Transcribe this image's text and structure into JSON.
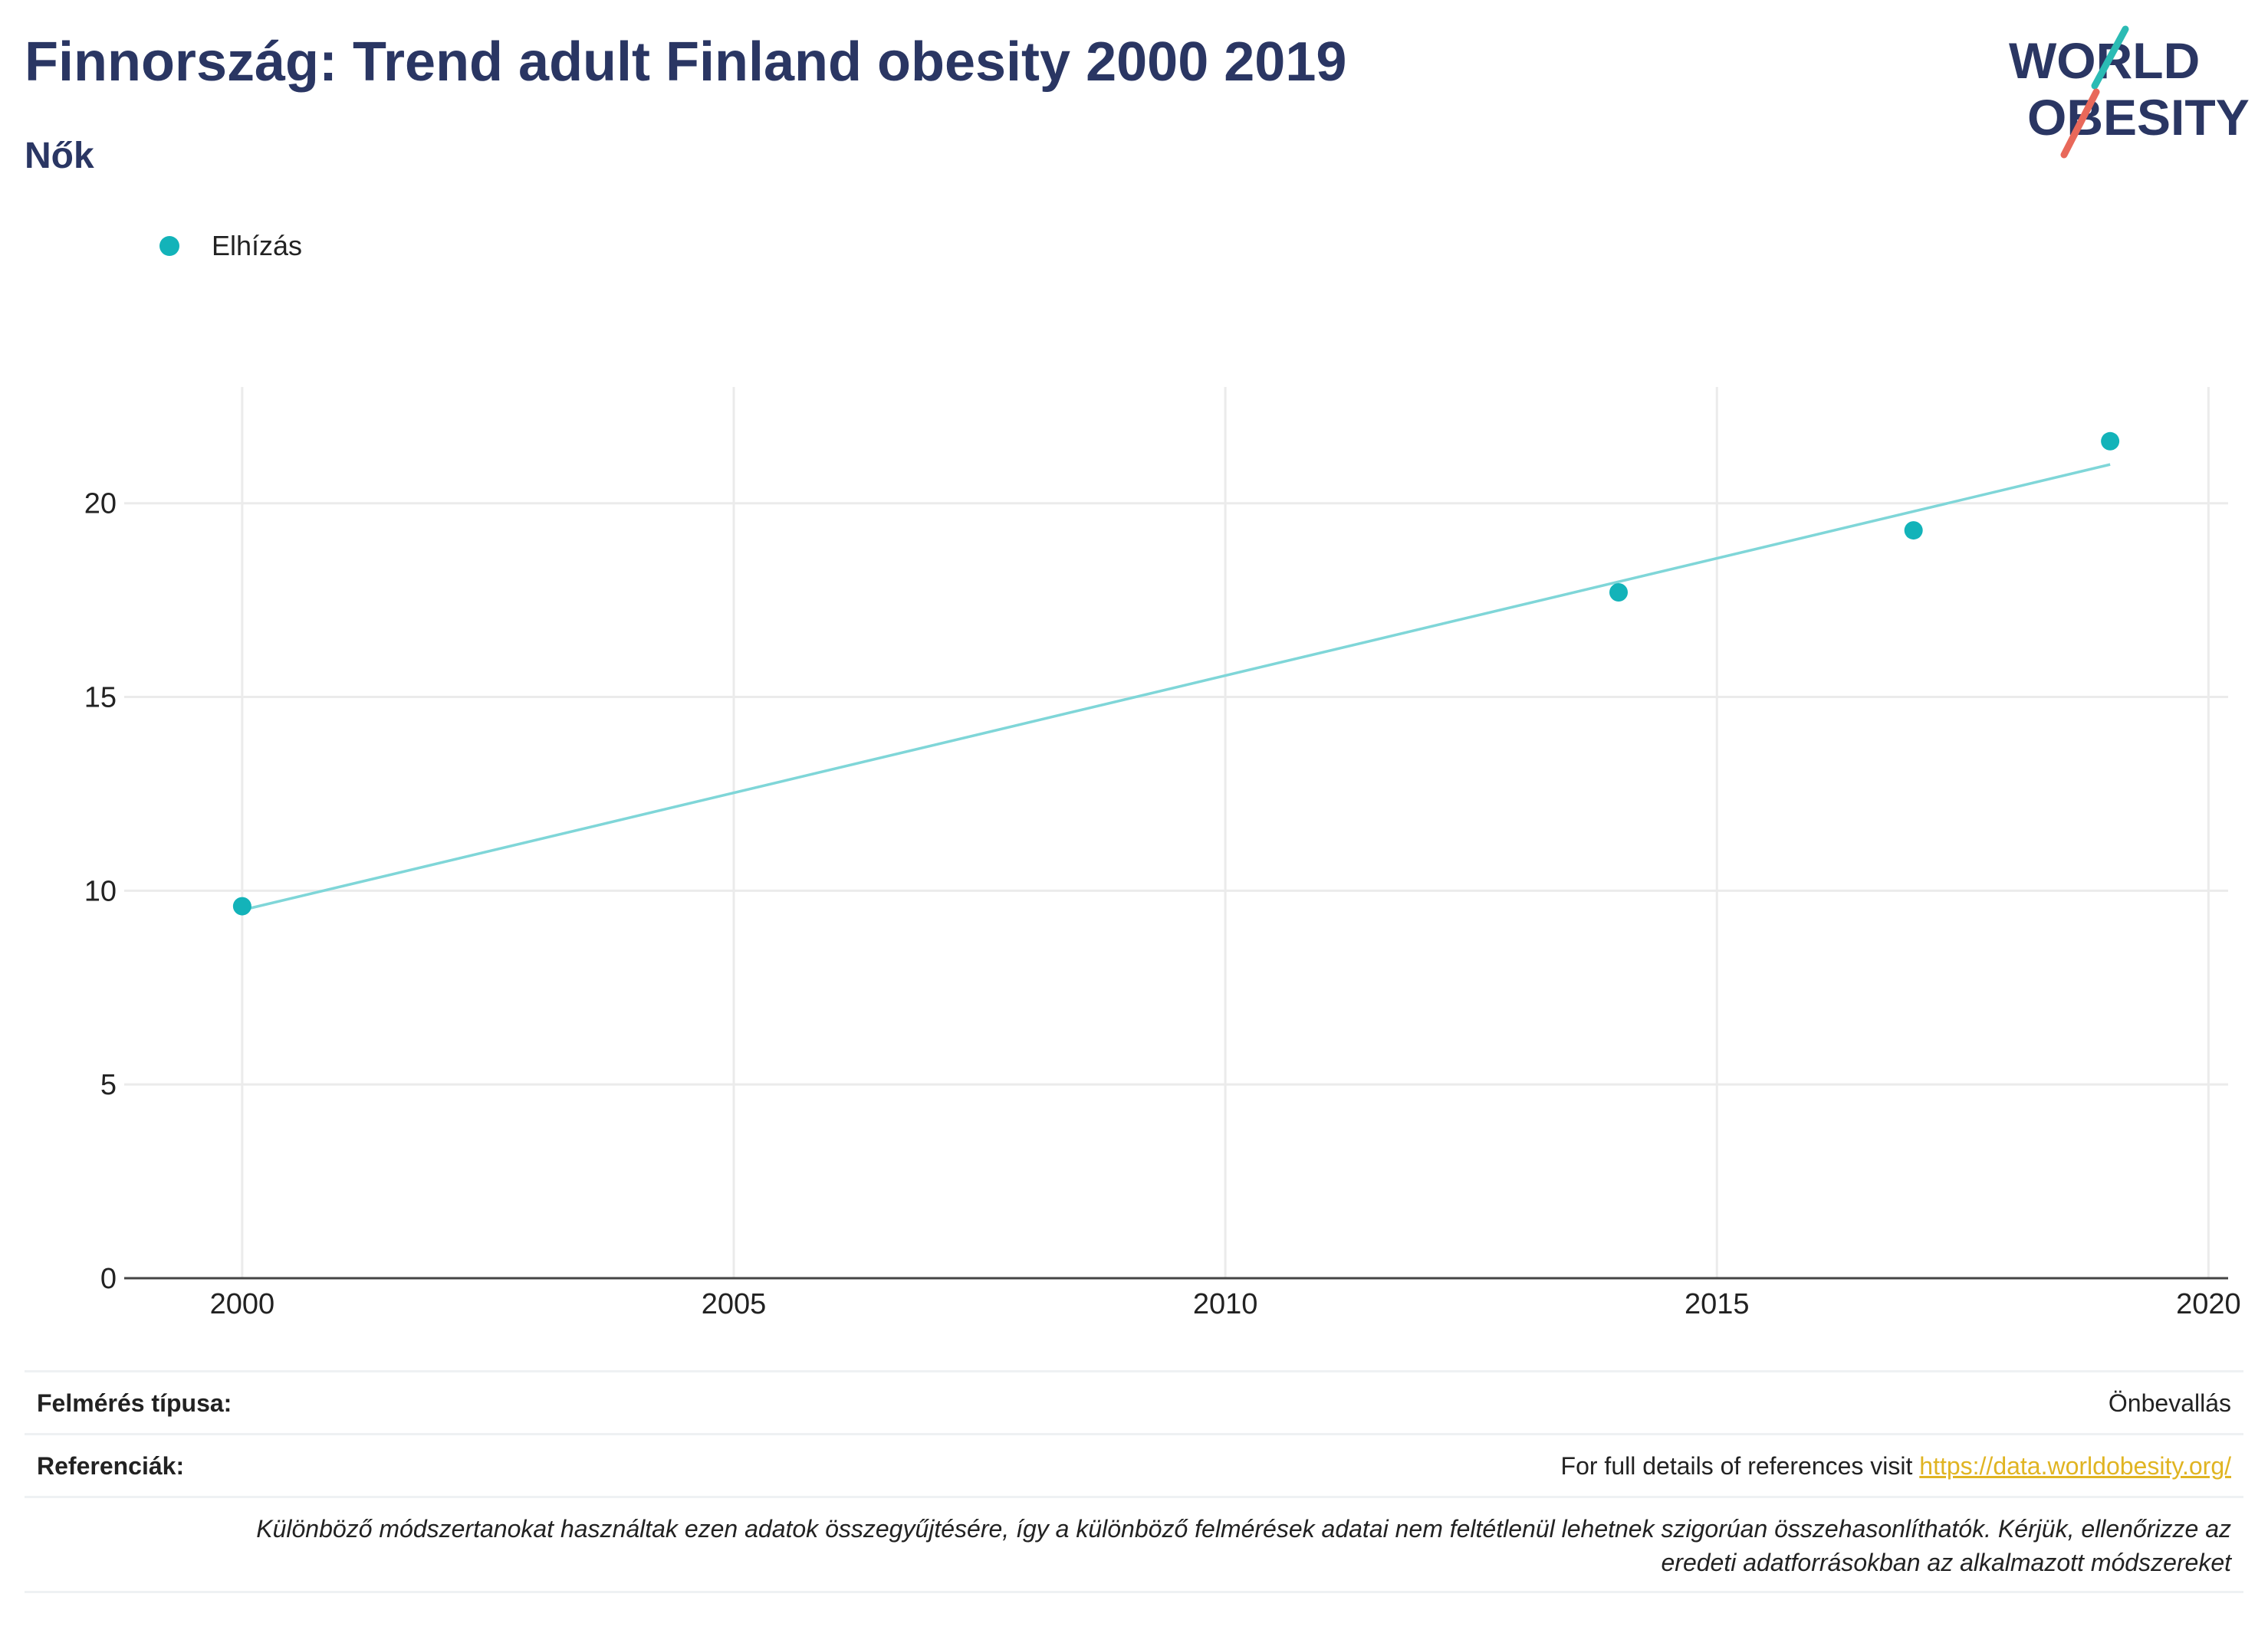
{
  "header": {
    "title": "Finnország: Trend adult Finland obesity 2000 2019",
    "subtitle": "Nők"
  },
  "logo": {
    "line1": "WORLD",
    "line2": "OBESITY",
    "colors": {
      "text": "#2a3663",
      "slash_teal": "#2bbbb4",
      "slash_coral": "#e8685a"
    }
  },
  "colors": {
    "accent": "#13b3b9",
    "trend_line": "#7fd6d8",
    "grid": "#ebebeb",
    "axis": "#444444",
    "title": "#2a3663",
    "link": "#e0b422"
  },
  "chart_data": {
    "type": "scatter",
    "series": [
      {
        "name": "Elhízás",
        "x": [
          2000,
          2014,
          2017,
          2019
        ],
        "y": [
          9.6,
          17.7,
          19.3,
          21.6
        ]
      }
    ],
    "trendline": {
      "x": [
        2000,
        2019
      ],
      "y": [
        9.5,
        21.0
      ]
    },
    "xlim": [
      1998.8,
      2020.2
    ],
    "ylim": [
      0,
      23
    ],
    "xticks": [
      2000,
      2005,
      2010,
      2015,
      2020
    ],
    "yticks": [
      0,
      5,
      10,
      15,
      20
    ],
    "xlabel": "",
    "ylabel": "",
    "grid": true,
    "legend_position": "top-left"
  },
  "footer": {
    "survey_type_label": "Felmérés típusa:",
    "survey_type_value": "Önbevallás",
    "references_label": "Referenciák:",
    "references_text": "For full details of references visit ",
    "references_link": "https://data.worldobesity.org/",
    "note_line1": "Különböző módszertanokat használtak ezen adatok összegyűjtésére, így a különböző felmérések adatai nem feltétlenül lehetnek szigorúan összehasonlíthatók. Kérjük, ellenőrizze az",
    "note_line2": "eredeti adatforrásokban az alkalmazott módszereket"
  }
}
